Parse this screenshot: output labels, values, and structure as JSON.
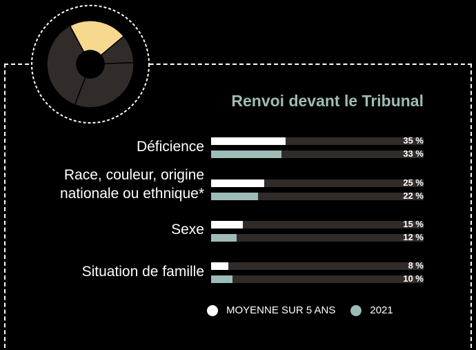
{
  "colors": {
    "background": "#000000",
    "title": "#9dbcb7",
    "track": "#312c2a",
    "avg_bar": "#ffffff",
    "year_bar": "#9dbcb7",
    "donut_highlight": "#f6d98e",
    "donut_base": "#312c2a"
  },
  "donut": {
    "highlight_share": 15,
    "icon": "donut-chart-icon"
  },
  "chart_data": {
    "type": "bar",
    "orientation": "horizontal",
    "title": "Renvoi devant le Tribunal",
    "unit": "%",
    "xlim": [
      0,
      100
    ],
    "categories": [
      "Déficience",
      "Race, couleur, origine\nnationale ou ethnique*",
      "Sexe",
      "Situation de famille"
    ],
    "series": [
      {
        "name": "MOYENNE SUR 5 ANS",
        "values": [
          35,
          25,
          15,
          8
        ],
        "labels": [
          "35 %",
          "25 %",
          "15 %",
          "8 %"
        ]
      },
      {
        "name": "2021",
        "values": [
          33,
          22,
          12,
          10
        ],
        "labels": [
          "33 %",
          "22 %",
          "12 %",
          "10 %"
        ]
      }
    ],
    "legend": "bottom"
  }
}
